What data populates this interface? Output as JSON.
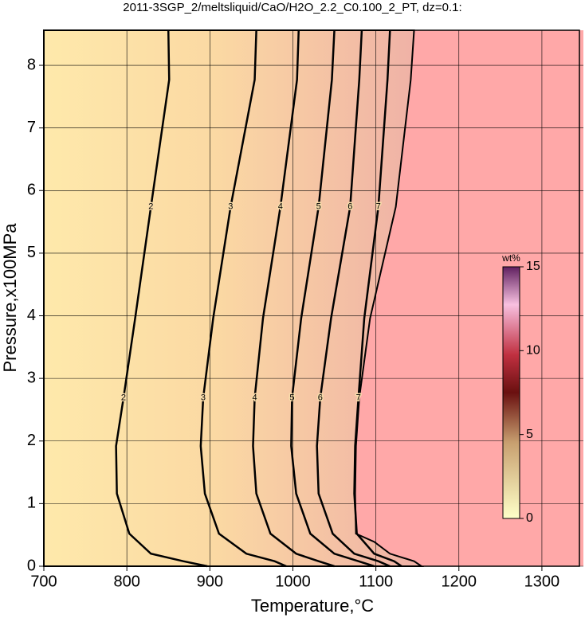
{
  "chart_data": {
    "type": "contour",
    "title": "2011-3SGP_2/meltsliquid/CaO/H2O_2.2_C0.100_2_PT, dz=0.1:",
    "x_label": "Temperature,°C",
    "y_label": "Pressure,x100MPa",
    "xlim": [
      700,
      1350
    ],
    "ylim": [
      0,
      8.56
    ],
    "xticks": [
      700,
      800,
      900,
      1000,
      1100,
      1200,
      1300
    ],
    "yticks": [
      0,
      1,
      2,
      3,
      4,
      5,
      6,
      7,
      8
    ],
    "grid": true,
    "contours": [
      {
        "label": "2",
        "x": [
          850,
          851,
          829,
          810,
          796,
          787,
          788,
          803,
          829,
          868,
          897
        ],
        "y": [
          8.56,
          7.77,
          5.74,
          3.96,
          2.69,
          1.92,
          1.16,
          0.52,
          0.2,
          0.08,
          0
        ]
      },
      {
        "label": "3",
        "x": [
          956,
          954,
          925,
          904,
          892,
          889,
          894,
          911,
          944,
          978,
          992
        ],
        "y": [
          8.56,
          7.77,
          5.74,
          3.96,
          2.69,
          1.92,
          1.16,
          0.52,
          0.2,
          0.08,
          0
        ]
      },
      {
        "label": "4",
        "x": [
          1007,
          1005,
          985,
          964,
          954,
          952,
          956,
          973,
          1004,
          1031,
          1050
        ],
        "y": [
          8.56,
          7.77,
          5.74,
          3.96,
          2.69,
          1.92,
          1.16,
          0.52,
          0.2,
          0.08,
          0
        ]
      },
      {
        "label": "5",
        "x": [
          1050,
          1047,
          1031,
          1010,
          999,
          998,
          1004,
          1021,
          1050,
          1079,
          1098
        ],
        "y": [
          8.56,
          7.77,
          5.74,
          3.96,
          2.69,
          1.92,
          1.16,
          0.52,
          0.2,
          0.08,
          0
        ]
      },
      {
        "label": "6",
        "x": [
          1083,
          1080,
          1069,
          1046,
          1033,
          1029,
          1031,
          1048,
          1074,
          1103,
          1117
        ],
        "y": [
          8.56,
          7.77,
          5.74,
          3.96,
          2.69,
          1.92,
          1.16,
          0.52,
          0.2,
          0.08,
          0
        ]
      },
      {
        "label": "7",
        "x": [
          1117,
          1114,
          1103,
          1086,
          1079,
          1075,
          1074,
          1077,
          1098,
          1122,
          1131
        ],
        "y": [
          8.56,
          7.77,
          5.74,
          3.96,
          2.69,
          1.92,
          1.16,
          0.52,
          0.2,
          0.08,
          0
        ]
      }
    ],
    "boundary": {
      "x": [
        1146,
        1142,
        1124,
        1093,
        1080,
        1076,
        1075,
        1076,
        1098,
        1117,
        1146,
        1155
      ],
      "y": [
        8.56,
        7.77,
        5.74,
        3.96,
        2.69,
        1.92,
        1.16,
        0.52,
        0.39,
        0.2,
        0.08,
        0
      ]
    },
    "colorbar": {
      "label": "wt%",
      "lim": [
        0,
        15
      ],
      "ticks": [
        0,
        5,
        10,
        15
      ]
    }
  }
}
